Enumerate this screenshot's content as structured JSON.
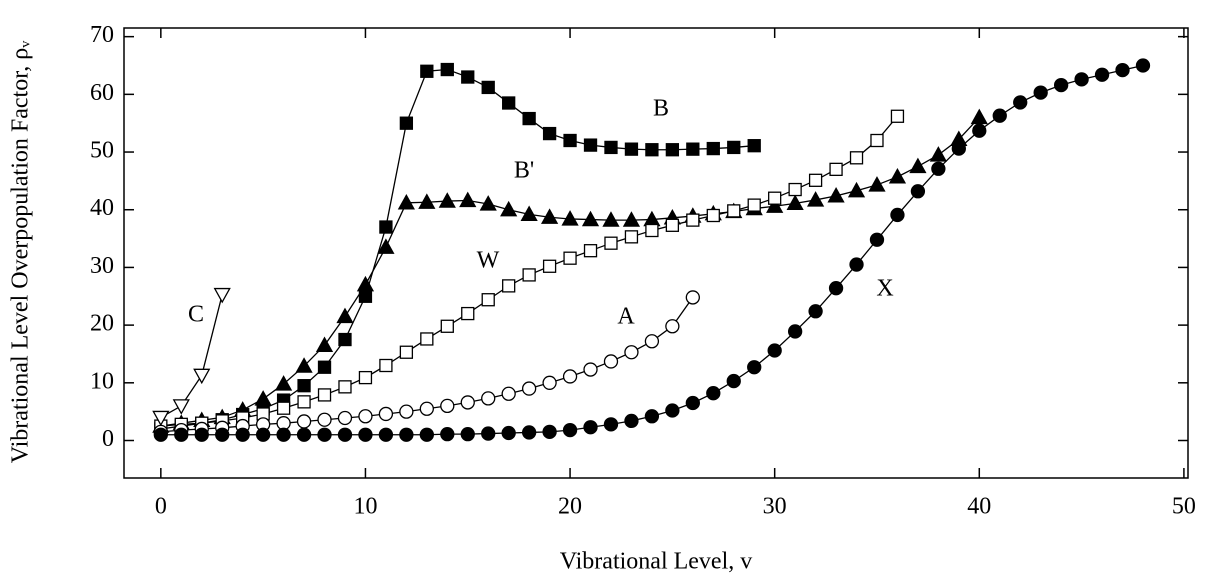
{
  "chart_data": {
    "type": "line",
    "xlabel": "Vibrational Level, v",
    "ylabel": "Vibrational Level Overpopulation Factor, ρᵥ",
    "xlim": [
      -1.8,
      50.2
    ],
    "ylim": [
      -6.5,
      71.5
    ],
    "xticks": [
      0,
      10,
      20,
      30,
      40,
      50
    ],
    "yticks": [
      0,
      10,
      20,
      30,
      40,
      50,
      60,
      70
    ],
    "color": "#000000",
    "annotations": [
      "B",
      "B'",
      "W",
      "C",
      "A",
      "X"
    ],
    "series": [
      {
        "marker": "square",
        "filled": true,
        "x": [
          0,
          1,
          2,
          3,
          4,
          5,
          6,
          7,
          8,
          9,
          10,
          11,
          12,
          13,
          14,
          15,
          16,
          17,
          18,
          19,
          20,
          21,
          22,
          23,
          24,
          25,
          26,
          27,
          28,
          29
        ],
        "values": [
          2.0,
          2.5,
          3.0,
          3.6,
          4.5,
          5.5,
          7.0,
          9.5,
          12.7,
          17.5,
          25.0,
          37.0,
          55.0,
          64.0,
          64.3,
          63.0,
          61.2,
          58.5,
          55.8,
          53.2,
          52.0,
          51.2,
          50.8,
          50.5,
          50.4,
          50.4,
          50.5,
          50.6,
          50.8,
          51.1
        ]
      },
      {
        "marker": "triangle",
        "filled": true,
        "x": [
          0,
          1,
          2,
          3,
          4,
          5,
          6,
          7,
          8,
          9,
          10,
          11,
          12,
          13,
          14,
          15,
          16,
          17,
          18,
          19,
          20,
          21,
          22,
          23,
          24,
          25,
          26,
          27,
          28,
          29,
          30,
          31,
          32,
          33,
          34,
          35,
          36,
          37,
          38,
          39,
          40
        ],
        "values": [
          2.5,
          3.0,
          3.5,
          4.0,
          5.3,
          7.2,
          9.8,
          12.9,
          16.5,
          21.5,
          27.0,
          33.5,
          41.2,
          41.3,
          41.5,
          41.6,
          41.0,
          40.0,
          39.2,
          38.7,
          38.4,
          38.3,
          38.2,
          38.2,
          38.3,
          38.6,
          38.9,
          39.3,
          39.7,
          40.2,
          40.6,
          41.1,
          41.7,
          42.4,
          43.3,
          44.3,
          45.7,
          47.5,
          49.5,
          52.2,
          56.0
        ]
      },
      {
        "marker": "square",
        "filled": false,
        "x": [
          0,
          1,
          2,
          3,
          4,
          5,
          6,
          7,
          8,
          9,
          10,
          11,
          12,
          13,
          14,
          15,
          16,
          17,
          18,
          19,
          20,
          21,
          22,
          23,
          24,
          25,
          26,
          27,
          28,
          29,
          30,
          31,
          32,
          33,
          34,
          35,
          36
        ],
        "values": [
          2.5,
          2.8,
          3.0,
          3.4,
          3.9,
          4.6,
          5.6,
          6.7,
          7.9,
          9.3,
          10.9,
          13.0,
          15.3,
          17.6,
          19.8,
          22.0,
          24.4,
          26.8,
          28.7,
          30.2,
          31.6,
          32.9,
          34.2,
          35.3,
          36.4,
          37.3,
          38.2,
          39.0,
          39.8,
          40.8,
          42.0,
          43.5,
          45.1,
          47.0,
          49.0,
          52.0,
          56.2
        ]
      },
      {
        "marker": "triangle-down",
        "filled": false,
        "x": [
          0,
          1,
          2,
          3
        ],
        "values": [
          4.0,
          6.0,
          11.3,
          25.3
        ]
      },
      {
        "marker": "circle",
        "filled": false,
        "x": [
          0,
          1,
          2,
          3,
          4,
          5,
          6,
          7,
          8,
          9,
          10,
          11,
          12,
          13,
          14,
          15,
          16,
          17,
          18,
          19,
          20,
          21,
          22,
          23,
          24,
          25,
          26
        ],
        "values": [
          1.5,
          1.8,
          2.0,
          2.2,
          2.5,
          2.8,
          3.0,
          3.3,
          3.6,
          3.9,
          4.2,
          4.6,
          5.0,
          5.5,
          6.0,
          6.6,
          7.3,
          8.1,
          9.0,
          10.0,
          11.1,
          12.3,
          13.7,
          15.3,
          17.2,
          19.8,
          24.8
        ]
      },
      {
        "marker": "circle",
        "filled": true,
        "x": [
          0,
          1,
          2,
          3,
          4,
          5,
          6,
          7,
          8,
          9,
          10,
          11,
          12,
          13,
          14,
          15,
          16,
          17,
          18,
          19,
          20,
          21,
          22,
          23,
          24,
          25,
          26,
          27,
          28,
          29,
          30,
          31,
          32,
          33,
          34,
          35,
          36,
          37,
          38,
          39,
          40,
          41,
          42,
          43,
          44,
          45,
          46,
          47,
          48
        ],
        "values": [
          1,
          1,
          1,
          1,
          1,
          1,
          1,
          1,
          1,
          1,
          1,
          1,
          1,
          1,
          1.1,
          1.1,
          1.2,
          1.3,
          1.4,
          1.5,
          1.8,
          2.3,
          2.8,
          3.4,
          4.2,
          5.2,
          6.5,
          8.2,
          10.3,
          12.7,
          15.6,
          18.9,
          22.4,
          26.4,
          30.5,
          34.8,
          39.1,
          43.2,
          47.1,
          50.6,
          53.7,
          56.3,
          58.6,
          60.3,
          61.6,
          62.6,
          63.4,
          64.2,
          65.0
        ]
      }
    ]
  }
}
